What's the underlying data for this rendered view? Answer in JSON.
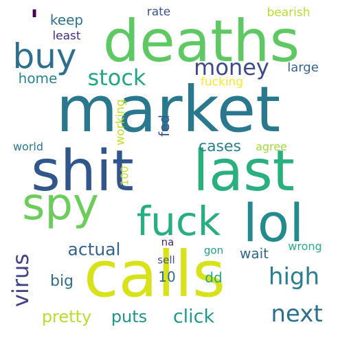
{
  "words": {
    "market": {
      "text": "market",
      "color": "#2a788e"
    },
    "deaths": {
      "text": "deaths",
      "color": "#5ec962"
    },
    "calls": {
      "text": "calls",
      "color": "#d8e219"
    },
    "shit": {
      "text": "shit",
      "color": "#31568c"
    },
    "last": {
      "text": "last",
      "color": "#2ab07f"
    },
    "lol": {
      "text": "lol",
      "color": "#238a8d"
    },
    "spy": {
      "text": "spy",
      "color": "#6ccd5a"
    },
    "fuck": {
      "text": "fuck",
      "color": "#28ae80"
    },
    "buy": {
      "text": "buy",
      "color": "#2d6f8e"
    },
    "money": {
      "text": "money",
      "color": "#3e4989"
    },
    "stock": {
      "text": "stock",
      "color": "#22a785"
    },
    "high": {
      "text": "high",
      "color": "#277e8e"
    },
    "next": {
      "text": "next",
      "color": "#2d708e"
    },
    "virus": {
      "text": "virus",
      "color": "#414487"
    },
    "click": {
      "text": "click",
      "color": "#1f9a8a"
    },
    "actual": {
      "text": "actual",
      "color": "#33628d"
    },
    "apostrophe": {
      "text": "'",
      "color": "#440154"
    },
    "keep": {
      "text": "keep",
      "color": "#2c728e"
    },
    "least": {
      "text": "least",
      "color": "#472d7b"
    },
    "rate": {
      "text": "rate",
      "color": "#3b528b"
    },
    "bearish": {
      "text": "bearish",
      "color": "#b5de2b"
    },
    "large": {
      "text": "large",
      "color": "#33638d"
    },
    "home": {
      "text": "home",
      "color": "#25848e"
    },
    "fucking": {
      "text": "fucking",
      "color": "#fde725"
    },
    "working": {
      "text": "working",
      "color": "#bddf26"
    },
    "fed": {
      "text": "fed",
      "color": "#3a548c"
    },
    "cases": {
      "text": "cases",
      "color": "#26828e"
    },
    "agree": {
      "text": "agree",
      "color": "#a0da39"
    },
    "world": {
      "text": "world",
      "color": "#2a788e"
    },
    "100": {
      "text": "100",
      "color": "#c2df23"
    },
    "na": {
      "text": "na",
      "color": "#482475"
    },
    "gon": {
      "text": "gon",
      "color": "#1f9e89"
    },
    "wrong": {
      "text": "wrong",
      "color": "#26ad81"
    },
    "sell": {
      "text": "sell",
      "color": "#3e4c8a"
    },
    "wait": {
      "text": "wait",
      "color": "#31668e"
    },
    "10": {
      "text": "10",
      "color": "#2f6b8e"
    },
    "big": {
      "text": "big",
      "color": "#2e6e8e"
    },
    "dd": {
      "text": "dd",
      "color": "#22a884"
    },
    "pretty": {
      "text": "pretty",
      "color": "#b8de29"
    },
    "puts": {
      "text": "puts",
      "color": "#1f948c"
    }
  }
}
